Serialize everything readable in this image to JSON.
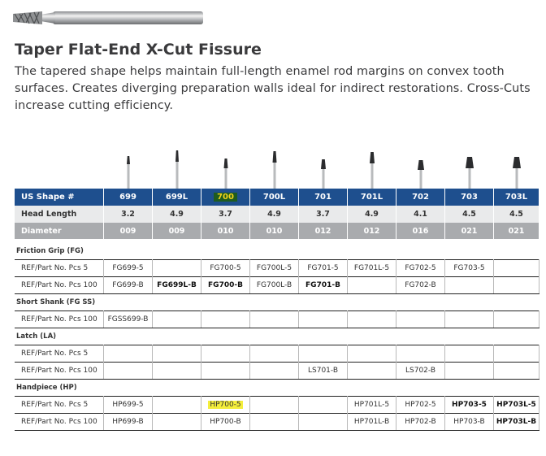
{
  "product": {
    "title": "Taper Flat-End X-Cut Fissure",
    "description_lines": [
      "The tapered shape helps maintain full-length enamel rod margins on convex tooth",
      "surfaces. Creates diverging preparation walls ideal for indirect restorations. Cross-Cuts",
      "increase cutting efficiency."
    ]
  },
  "table": {
    "header": {
      "label": "US Shape #",
      "cells": [
        "699",
        "699L",
        "700",
        "700L",
        "701",
        "701L",
        "702",
        "703",
        "703L"
      ]
    },
    "specs": [
      {
        "label": "Head Length",
        "cells": [
          "3.2",
          "4.9",
          "3.7",
          "4.9",
          "3.7",
          "4.9",
          "4.1",
          "4.5",
          "4.5"
        ]
      },
      {
        "label": "Diameter",
        "cells": [
          "009",
          "009",
          "010",
          "010",
          "012",
          "012",
          "016",
          "021",
          "021"
        ]
      }
    ],
    "sections": [
      {
        "name": "Friction Grip (FG)",
        "rows": [
          {
            "label": "REF/Part No. Pcs 5",
            "cells": [
              "FG699-5",
              null,
              "FG700-5",
              "FG700L-5",
              "FG701-5",
              "FG701L-5",
              "FG702-5",
              "FG703-5",
              null
            ]
          },
          {
            "label": "REF/Part No. Pcs 100",
            "cells": [
              "FG699-B",
              "FG699L-B",
              "FG700-B",
              "FG700L-B",
              "FG701-B",
              null,
              "FG702-B",
              null,
              null
            ]
          }
        ]
      },
      {
        "name": "Short Shank (FG SS)",
        "rows": [
          {
            "label": "REF/Part No. Pcs 100",
            "cells": [
              "FGSS699-B",
              null,
              null,
              null,
              null,
              null,
              null,
              null,
              null
            ]
          }
        ]
      },
      {
        "name": "Latch (LA)",
        "rows": [
          {
            "label": "REF/Part No. Pcs 5",
            "cells": [
              null,
              null,
              null,
              null,
              null,
              null,
              null,
              null,
              null
            ]
          },
          {
            "label": "REF/Part No. Pcs 100",
            "cells": [
              null,
              null,
              null,
              null,
              "LS701-B",
              null,
              "LS702-B",
              null,
              null
            ]
          }
        ]
      },
      {
        "name": "Handpiece (HP)",
        "rows": [
          {
            "label": "REF/Part No. Pcs 5",
            "cells": [
              "HP699-5",
              null,
              "HP700-5",
              null,
              null,
              "HP701L-5",
              "HP702-5",
              "HP703-5",
              "HP703L-5"
            ]
          },
          {
            "label": "REF/Part No. Pcs 100",
            "cells": [
              "HP699-B",
              null,
              "HP700-B",
              null,
              null,
              "HP701L-B",
              "HP702-B",
              "HP703-B",
              "HP703L-B"
            ]
          }
        ]
      }
    ]
  }
}
